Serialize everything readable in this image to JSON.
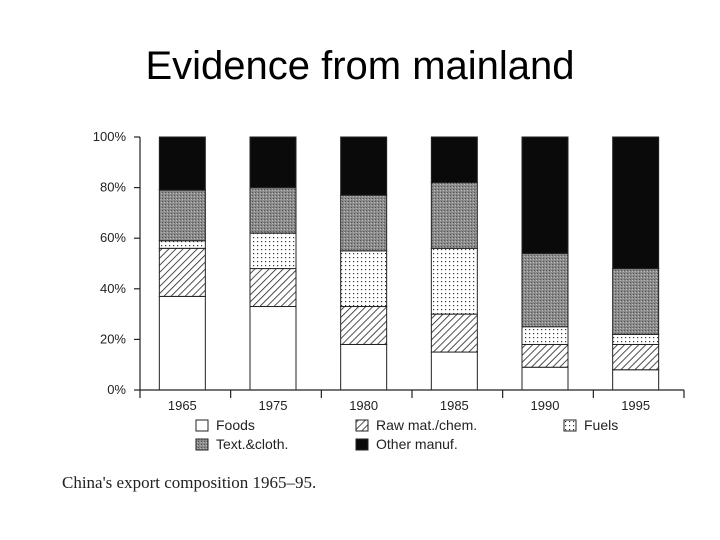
{
  "slide": {
    "title": "Evidence from mainland",
    "caption": "China's export composition 1965–95."
  },
  "chart_data": {
    "type": "bar",
    "stacked": true,
    "categories": [
      "1965",
      "1975",
      "1980",
      "1985",
      "1990",
      "1995"
    ],
    "ylim": [
      0,
      100
    ],
    "yticks": [
      "0%",
      "20%",
      "40%",
      "60%",
      "80%",
      "100%"
    ],
    "ytick_values": [
      0,
      20,
      40,
      60,
      80,
      100
    ],
    "title": "",
    "xlabel": "",
    "ylabel": "",
    "grid": false,
    "legend_position": "bottom",
    "series": [
      {
        "name": "Foods",
        "pattern": "blank",
        "values": [
          37,
          33,
          18,
          15,
          9,
          8
        ]
      },
      {
        "name": "Raw mat./chem.",
        "pattern": "diagonal",
        "values": [
          19,
          15,
          15,
          15,
          9,
          10
        ]
      },
      {
        "name": "Fuels",
        "pattern": "dotted",
        "values": [
          3,
          14,
          22,
          26,
          7,
          4
        ]
      },
      {
        "name": "Text.&cloth.",
        "pattern": "grey",
        "values": [
          20,
          18,
          22,
          26,
          29,
          26
        ]
      },
      {
        "name": "Other manuf.",
        "pattern": "black",
        "values": [
          21,
          20,
          23,
          18,
          46,
          52
        ]
      }
    ],
    "legend_order": [
      0,
      1,
      2,
      3,
      4
    ]
  }
}
